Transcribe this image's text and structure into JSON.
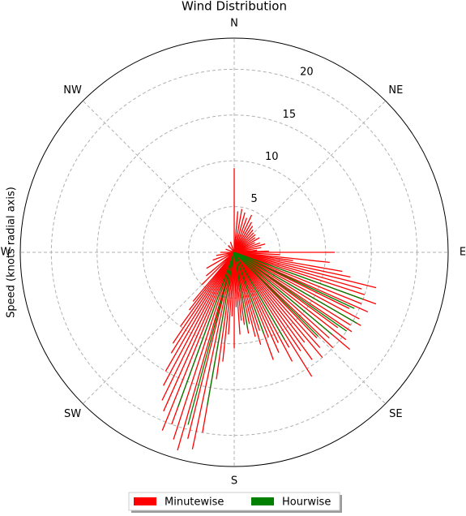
{
  "chart_data": {
    "type": "polar_bar",
    "title": "Wind Distribution",
    "ylabel": "Speed (knots radial axis)",
    "rlim": [
      0,
      23.4
    ],
    "rticks": [
      5,
      10,
      15,
      20
    ],
    "theta_ticks": [
      {
        "value": 0,
        "label": "N"
      },
      {
        "value": 45,
        "label": "NE"
      },
      {
        "value": 90,
        "label": "E"
      },
      {
        "value": 135,
        "label": "SE"
      },
      {
        "value": 180,
        "label": "S"
      },
      {
        "value": 225,
        "label": "SW"
      },
      {
        "value": 270,
        "label": "W"
      },
      {
        "value": 315,
        "label": "NW"
      }
    ],
    "grid": true,
    "series": [
      {
        "name": "Minutewise",
        "color": "#ff0000",
        "theta": [
          0,
          5,
          10,
          15,
          20,
          25,
          30,
          35,
          40,
          45,
          50,
          55,
          60,
          65,
          70,
          75,
          80,
          85,
          88,
          90,
          93,
          96,
          98,
          100,
          102,
          104,
          106,
          108,
          110,
          112,
          114,
          116,
          118,
          120,
          122,
          124,
          126,
          128,
          130,
          132,
          134,
          136,
          138,
          140,
          142,
          144,
          146,
          148,
          150,
          152,
          154,
          156,
          158,
          160,
          162,
          164,
          166,
          168,
          170,
          172,
          174,
          176,
          178,
          180,
          182,
          184,
          186,
          188,
          190,
          192,
          194,
          196,
          198,
          200,
          202,
          204,
          206,
          208,
          210,
          212,
          214,
          216,
          218,
          220,
          225,
          230,
          240,
          250,
          260,
          270,
          290,
          320,
          340
        ],
        "values": [
          9.2,
          4.5,
          4.8,
          4.5,
          4.0,
          4.5,
          3.8,
          3.5,
          3.2,
          3.0,
          3.0,
          2.8,
          3.2,
          2.5,
          3.0,
          3.5,
          3.0,
          2.5,
          3.8,
          11,
          5,
          10.5,
          6.5,
          12,
          13,
          16,
          14.5,
          15,
          16.5,
          15,
          16,
          14,
          15.5,
          16,
          15,
          15.5,
          14,
          15.5,
          16.5,
          14,
          15,
          13,
          14,
          15,
          12.5,
          14.5,
          13,
          16,
          12,
          13.5,
          11,
          12,
          10,
          12.5,
          9,
          10.5,
          9.5,
          8,
          9,
          8,
          7.5,
          9,
          6,
          10.5,
          7,
          9,
          12,
          14,
          20,
          22,
          21,
          22.5,
          21.5,
          20,
          21,
          19,
          18,
          16.5,
          15,
          13,
          12,
          10,
          8,
          7,
          5,
          4,
          3.5,
          2.5,
          2,
          1.5,
          1,
          1,
          1.2
        ]
      },
      {
        "name": "Hourwise",
        "color": "#008000",
        "theta": [
          110,
          115,
          120,
          125,
          130,
          135,
          150,
          160,
          170,
          190,
          195,
          200
        ],
        "values": [
          15,
          14.5,
          15.5,
          15,
          14,
          13,
          11,
          9.5,
          8.5,
          17,
          19.5,
          18
        ]
      }
    ]
  }
}
